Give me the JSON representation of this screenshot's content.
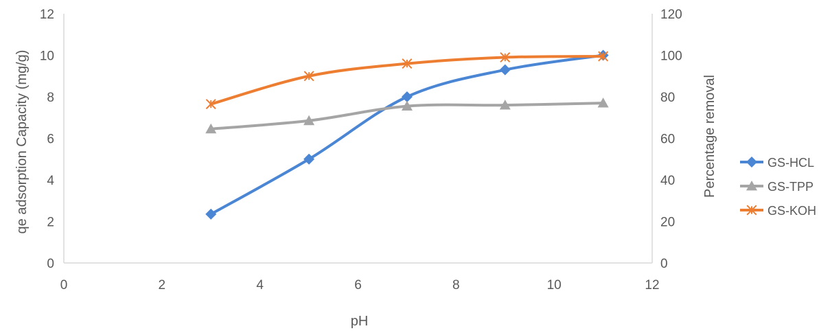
{
  "chart_data": {
    "type": "line",
    "title": "",
    "xlabel": "pH",
    "ylabel": "qe adsorption Capacity (mg/g)",
    "y2label": "Percentage removal",
    "xlim": [
      0,
      12
    ],
    "ylim": [
      0,
      12
    ],
    "y2lim": [
      0,
      120
    ],
    "xticks": [
      "0",
      "2",
      "4",
      "6",
      "8",
      "10",
      "12"
    ],
    "yticks": [
      "0",
      "2",
      "4",
      "6",
      "8",
      "10",
      "12"
    ],
    "y2ticks": [
      "0",
      "20",
      "40",
      "60",
      "80",
      "100",
      "120"
    ],
    "grid": false,
    "legend_position": "right",
    "x": [
      3,
      5,
      7,
      9,
      11
    ],
    "series": [
      {
        "name": "GS-HCL",
        "values": [
          2.35,
          5.0,
          8.0,
          9.3,
          10.0
        ],
        "color": "#4a86d4",
        "marker": "diamond"
      },
      {
        "name": "GS-TPP",
        "values": [
          6.45,
          6.85,
          7.55,
          7.6,
          7.7
        ],
        "color": "#a5a5a5",
        "marker": "triangle"
      },
      {
        "name": "GS-KOH",
        "values": [
          7.65,
          9.0,
          9.6,
          9.9,
          9.95
        ],
        "color": "#ed7d31",
        "marker": "asterisk"
      }
    ]
  }
}
